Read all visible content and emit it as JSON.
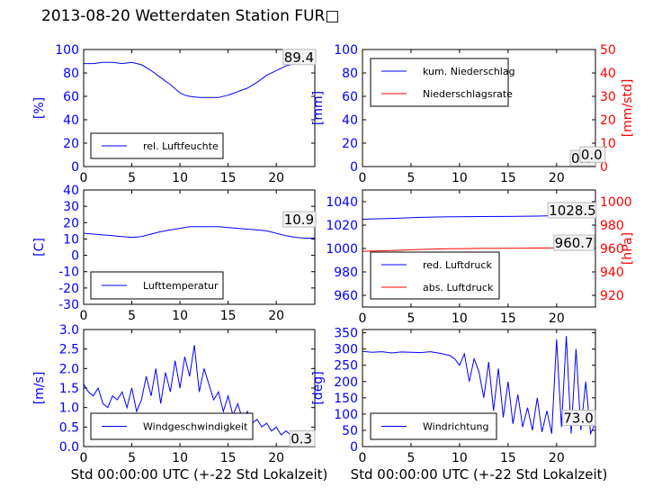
{
  "page": {
    "title": "2013-08-20 Wetterdaten Station FUR□"
  },
  "chart_data": [
    {
      "type": "line",
      "xlim": [
        0,
        24
      ],
      "ylim": [
        0,
        100
      ],
      "xticks": [
        0,
        5,
        10,
        15,
        20
      ],
      "yticks": [
        0,
        20,
        40,
        60,
        80,
        100
      ],
      "ylabel": "[%]",
      "legend": "lower-left",
      "series": [
        {
          "name": "rel. Luftfeuchte",
          "color": "#0000ff",
          "x": [
            0,
            1,
            2,
            3,
            4,
            5,
            6,
            7,
            8,
            9,
            10,
            10.5,
            11,
            12,
            13,
            14,
            15,
            16,
            17,
            18,
            19,
            20,
            21,
            22,
            23,
            24
          ],
          "y": [
            88,
            88,
            89,
            89,
            88,
            89,
            87,
            82,
            76,
            70,
            63,
            61,
            60,
            59,
            59,
            59,
            61,
            64,
            67,
            72,
            78,
            82,
            86,
            88,
            89,
            89
          ]
        }
      ],
      "annotation": "89.4"
    },
    {
      "type": "line",
      "xlim": [
        0,
        24
      ],
      "ylim": [
        0,
        100
      ],
      "y2lim": [
        0,
        50
      ],
      "xticks": [
        0,
        5,
        10,
        15,
        20
      ],
      "yticks": [
        0,
        20,
        40,
        60,
        80,
        100
      ],
      "y2ticks": [
        0,
        10,
        20,
        30,
        40,
        50
      ],
      "ylabel": "[mm]",
      "y2label": "[mm/std]",
      "legend": "top-left",
      "series": [
        {
          "name": "kum. Niederschlag",
          "color": "#0000ff",
          "axis": "left",
          "x": [
            0,
            24
          ],
          "y": [
            0,
            0
          ]
        },
        {
          "name": "Niederschlagsrate",
          "color": "#ff0000",
          "axis": "right",
          "x": [
            0,
            24
          ],
          "y": [
            0,
            0
          ]
        }
      ],
      "annotation": "0.0",
      "annotation2": "0.0"
    },
    {
      "type": "line",
      "xlim": [
        0,
        24
      ],
      "ylim": [
        -30,
        40
      ],
      "xticks": [
        0,
        5,
        10,
        15,
        20
      ],
      "yticks": [
        -30,
        -20,
        -10,
        0,
        10,
        20,
        30,
        40
      ],
      "ylabel": "[C]",
      "legend": "lower-left",
      "series": [
        {
          "name": "Lufttemperatur",
          "color": "#0000ff",
          "x": [
            0,
            1,
            2,
            3,
            4,
            5,
            6,
            7,
            8,
            9,
            10,
            11,
            12,
            13,
            14,
            15,
            16,
            17,
            18,
            19,
            20,
            21,
            22,
            23,
            24
          ],
          "y": [
            13.5,
            13,
            12.5,
            12,
            11.5,
            11,
            11.5,
            13,
            14.5,
            15.5,
            16.5,
            17.5,
            17.5,
            17.5,
            17.5,
            17,
            16.5,
            16,
            15.5,
            15,
            13.5,
            12,
            11,
            10.5,
            10.5
          ]
        }
      ],
      "annotation": "10.9"
    },
    {
      "type": "line",
      "xlim": [
        0,
        24
      ],
      "ylim": [
        950,
        1050
      ],
      "y2lim": [
        910,
        1010
      ],
      "xticks": [
        0,
        5,
        10,
        15,
        20
      ],
      "yticks": [
        960,
        980,
        1000,
        1020,
        1040
      ],
      "y2ticks": [
        920,
        940,
        960,
        980,
        1000
      ],
      "y2label": "[hPa]",
      "legend": "lower-left",
      "series": [
        {
          "name": "red. Luftdruck",
          "color": "#0000ff",
          "axis": "left",
          "x": [
            0,
            3,
            6,
            9,
            12,
            15,
            18,
            21,
            24
          ],
          "y": [
            1025,
            1025.7,
            1026.6,
            1027.1,
            1027.3,
            1027.4,
            1027.7,
            1028.3,
            1028.6
          ]
        },
        {
          "name": "abs. Luftdruck",
          "color": "#ff0000",
          "axis": "right",
          "x": [
            0,
            3,
            6,
            9,
            12,
            15,
            18,
            21,
            24
          ],
          "y": [
            957.6,
            958.3,
            959.2,
            959.8,
            960.1,
            960.2,
            960.4,
            960.6,
            960.7
          ]
        }
      ],
      "annotation": "1028.5",
      "annotation2": "960.7"
    },
    {
      "type": "line",
      "xlim": [
        0,
        24
      ],
      "ylim": [
        0,
        3.0
      ],
      "xticks": [
        0,
        5,
        10,
        15,
        20
      ],
      "yticks": [
        0.0,
        0.5,
        1.0,
        1.5,
        2.0,
        2.5,
        3.0
      ],
      "xlabel": "Std 00:00:00 UTC (+-22 Std Lokalzeit)",
      "ylabel": "[m/s]",
      "legend": "lower-left",
      "series": [
        {
          "name": "Windgeschwindigkeit",
          "color": "#0000ff",
          "x": [
            0,
            0.5,
            1,
            1.5,
            2,
            2.5,
            3,
            3.5,
            4,
            4.5,
            5,
            5.5,
            6,
            6.5,
            7,
            7.5,
            8,
            8.5,
            9,
            9.5,
            10,
            10.5,
            11,
            11.5,
            12,
            12.5,
            13,
            13.5,
            14,
            14.5,
            15,
            15.5,
            16,
            16.5,
            17,
            17.5,
            18,
            18.5,
            19,
            19.5,
            20,
            20.5,
            21,
            21.5,
            22,
            22.5,
            23,
            23.5,
            24
          ],
          "y": [
            1.6,
            1.4,
            1.3,
            1.5,
            1.1,
            1.0,
            1.3,
            1.2,
            1.4,
            1.0,
            1.5,
            0.9,
            1.2,
            1.8,
            1.3,
            2.0,
            1.1,
            1.9,
            1.4,
            2.2,
            1.5,
            2.3,
            1.8,
            2.6,
            1.4,
            2.0,
            1.6,
            1.2,
            1.4,
            0.9,
            1.3,
            0.8,
            1.1,
            0.7,
            0.9,
            0.6,
            0.7,
            0.5,
            0.6,
            0.4,
            0.5,
            0.3,
            0.4,
            0.3,
            0.4,
            0.3,
            0.35,
            0.3,
            0.3
          ]
        }
      ],
      "annotation": "0.3"
    },
    {
      "type": "line",
      "xlim": [
        0,
        24
      ],
      "ylim": [
        0,
        360
      ],
      "xticks": [
        0,
        5,
        10,
        15,
        20
      ],
      "yticks": [
        0,
        50,
        100,
        150,
        200,
        250,
        300,
        350
      ],
      "xlabel": "Std 00:00:00 UTC (+-22 Std Lokalzeit)",
      "ylabel": "[deg]",
      "legend": "lower-left",
      "series": [
        {
          "name": "Windrichtung",
          "color": "#0000ff",
          "x": [
            0,
            1,
            2,
            3,
            4,
            5,
            6,
            7,
            8,
            9,
            9.5,
            10,
            10.5,
            11,
            11.5,
            12,
            12.5,
            13,
            13.5,
            14,
            14.5,
            15,
            15.5,
            16,
            16.5,
            17,
            17.5,
            18,
            18.5,
            19,
            19.5,
            20,
            20.5,
            21,
            21.5,
            22,
            22.5,
            23,
            23.5,
            24
          ],
          "y": [
            293,
            290,
            292,
            288,
            291,
            290,
            289,
            292,
            287,
            280,
            270,
            250,
            285,
            200,
            270,
            230,
            150,
            260,
            110,
            240,
            90,
            200,
            70,
            160,
            60,
            120,
            50,
            150,
            45,
            110,
            40,
            330,
            60,
            340,
            40,
            300,
            50,
            200,
            40,
            73
          ]
        }
      ],
      "annotation": "73.0"
    }
  ]
}
